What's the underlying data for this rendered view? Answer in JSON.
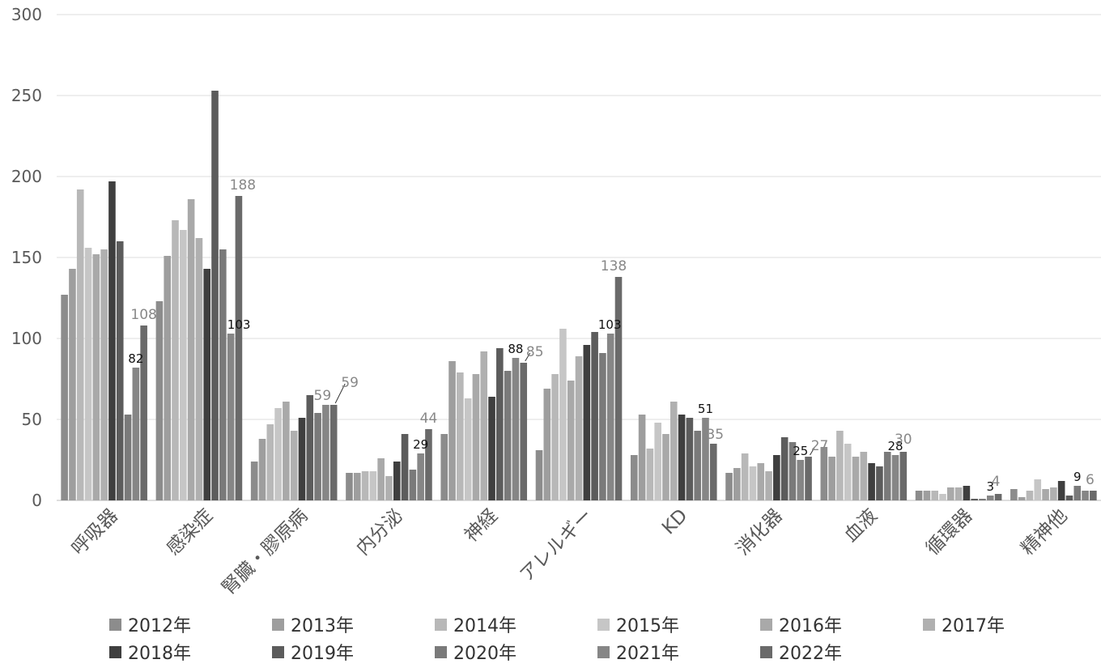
{
  "chart_data": {
    "type": "bar",
    "title": "",
    "xlabel": "",
    "ylabel": "",
    "ylim": [
      0,
      300
    ],
    "yticks": [
      0,
      50,
      100,
      150,
      200,
      250,
      300
    ],
    "grid": true,
    "legend_position": "bottom",
    "categories": [
      "呼吸器",
      "感染症",
      "腎臓・膠原病",
      "内分泌",
      "神経",
      "アレルギー",
      "KD",
      "消化器",
      "血液",
      "循環器",
      "精神他"
    ],
    "series": [
      {
        "name": "2012年",
        "color": "#8c8c8c",
        "values": [
          127,
          123,
          24,
          17,
          41,
          31,
          28,
          17,
          33,
          6,
          7
        ]
      },
      {
        "name": "2013年",
        "color": "#9e9e9e",
        "values": [
          143,
          151,
          38,
          17,
          86,
          69,
          53,
          20,
          27,
          6,
          2
        ]
      },
      {
        "name": "2014年",
        "color": "#b8b8b8",
        "values": [
          192,
          173,
          47,
          18,
          79,
          78,
          32,
          29,
          43,
          6,
          6
        ]
      },
      {
        "name": "2015年",
        "color": "#c6c6c6",
        "values": [
          156,
          167,
          57,
          18,
          63,
          106,
          48,
          21,
          35,
          4,
          13
        ]
      },
      {
        "name": "2016年",
        "color": "#a9a9a9",
        "values": [
          152,
          186,
          61,
          26,
          78,
          74,
          41,
          23,
          27,
          8,
          7
        ]
      },
      {
        "name": "2017年",
        "color": "#b0b0b0",
        "values": [
          155,
          162,
          43,
          15,
          92,
          89,
          61,
          18,
          30,
          8,
          8
        ]
      },
      {
        "name": "2018年",
        "color": "#3f3f3f",
        "values": [
          197,
          143,
          51,
          24,
          64,
          96,
          53,
          28,
          23,
          9,
          12
        ]
      },
      {
        "name": "2019年",
        "color": "#5c5c5c",
        "values": [
          160,
          253,
          65,
          41,
          94,
          104,
          51,
          39,
          21,
          1,
          3
        ]
      },
      {
        "name": "2020年",
        "color": "#7a7a7a",
        "values": [
          53,
          155,
          54,
          19,
          80,
          91,
          43,
          36,
          30,
          1,
          9
        ]
      },
      {
        "name": "2021年",
        "color": "#868686",
        "values": [
          82,
          103,
          59,
          29,
          88,
          103,
          51,
          25,
          28,
          3,
          6
        ]
      },
      {
        "name": "2022年",
        "color": "#6a6a6a",
        "values": [
          108,
          188,
          59,
          44,
          85,
          138,
          35,
          27,
          30,
          4,
          6
        ]
      }
    ],
    "data_labels": [
      {
        "category": 0,
        "series": 10,
        "text": "108",
        "color": "#888888",
        "dx": 0,
        "dy": -18
      },
      {
        "category": 0,
        "series": 9,
        "text": "82",
        "color": "#111111",
        "dx": 0,
        "dy": -16
      },
      {
        "category": 1,
        "series": 10,
        "text": "188",
        "color": "#888888",
        "dx": 5,
        "dy": -18
      },
      {
        "category": 1,
        "series": 9,
        "text": "103",
        "color": "#111111",
        "dx": 10,
        "dy": -16
      },
      {
        "category": 2,
        "series": 9,
        "text": "59",
        "color": "#888888",
        "dx": -4,
        "dy": -16
      },
      {
        "category": 2,
        "series": 10,
        "text": "59",
        "color": "#888888",
        "dx": 20,
        "dy": -32,
        "leader": true
      },
      {
        "category": 3,
        "series": 10,
        "text": "44",
        "color": "#888888",
        "dx": 0,
        "dy": -18
      },
      {
        "category": 3,
        "series": 9,
        "text": "29",
        "color": "#111111",
        "dx": 0,
        "dy": -16
      },
      {
        "category": 4,
        "series": 9,
        "text": "88",
        "color": "#111111",
        "dx": 0,
        "dy": -16
      },
      {
        "category": 4,
        "series": 10,
        "text": "85",
        "color": "#888888",
        "dx": 14,
        "dy": -18,
        "leader": true
      },
      {
        "category": 5,
        "series": 10,
        "text": "138",
        "color": "#888888",
        "dx": -6,
        "dy": -18
      },
      {
        "category": 5,
        "series": 9,
        "text": "103",
        "color": "#111111",
        "dx": -1,
        "dy": -16
      },
      {
        "category": 6,
        "series": 9,
        "text": "51",
        "color": "#111111",
        "dx": 0,
        "dy": -16
      },
      {
        "category": 6,
        "series": 10,
        "text": "35",
        "color": "#888888",
        "dx": 2,
        "dy": -16
      },
      {
        "category": 7,
        "series": 9,
        "text": "25",
        "color": "#111111",
        "dx": 0,
        "dy": -16
      },
      {
        "category": 7,
        "series": 10,
        "text": "27",
        "color": "#888888",
        "dx": 14,
        "dy": -18,
        "leader": true
      },
      {
        "category": 8,
        "series": 9,
        "text": "28",
        "color": "#111111",
        "dx": 0,
        "dy": -16
      },
      {
        "category": 8,
        "series": 10,
        "text": "30",
        "color": "#888888",
        "dx": 0,
        "dy": -20
      },
      {
        "category": 9,
        "series": 9,
        "text": "3",
        "color": "#111111",
        "dx": 0,
        "dy": -16
      },
      {
        "category": 9,
        "series": 10,
        "text": "4",
        "color": "#888888",
        "dx": -3,
        "dy": -20
      },
      {
        "category": 10,
        "series": 8,
        "text": "9",
        "color": "#111111",
        "dx": 0,
        "dy": -16
      },
      {
        "category": 10,
        "series": 10,
        "text": "6",
        "color": "#888888",
        "dx": -4,
        "dy": -18
      }
    ]
  }
}
